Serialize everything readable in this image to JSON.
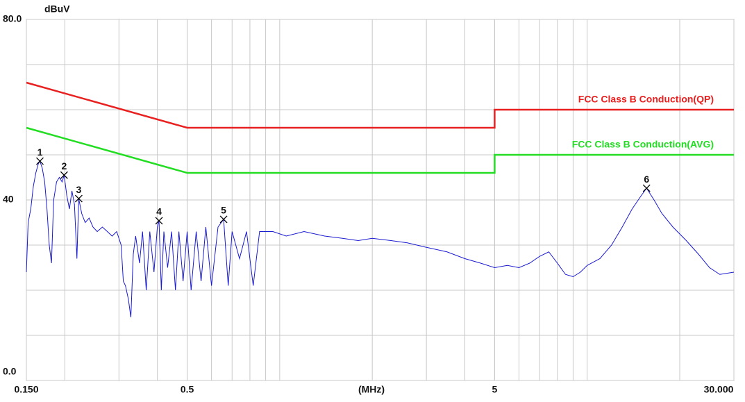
{
  "chart_data": {
    "type": "line",
    "y_label": "dBuV",
    "x_label": "(MHz)",
    "xscale": "log",
    "grid": true,
    "xlim": [
      0.15,
      30
    ],
    "ylim": [
      0,
      80
    ],
    "xticks": [
      {
        "value": 0.15,
        "label": "0.150"
      },
      0.5,
      5,
      {
        "value": 30,
        "label": "30.000"
      }
    ],
    "yticks": [
      {
        "value": 0,
        "label": "0.0"
      },
      40,
      {
        "value": 80,
        "label": "80.0"
      }
    ],
    "series": [
      {
        "name": "FCC Class B Conduction(QP)",
        "color": "#e82020",
        "x": [
          0.15,
          0.5,
          5,
          5,
          30
        ],
        "values": [
          66,
          56,
          56,
          60,
          60
        ]
      },
      {
        "name": "FCC Class B Conduction(AVG)",
        "color": "#22dd22",
        "x": [
          0.15,
          0.5,
          5,
          5,
          30
        ],
        "values": [
          56,
          46,
          46,
          50,
          50
        ]
      },
      {
        "color": "#1a1ad0",
        "x": [
          0.15,
          0.152,
          0.155,
          0.158,
          0.161,
          0.164,
          0.166,
          0.169,
          0.172,
          0.175,
          0.178,
          0.181,
          0.184,
          0.188,
          0.192,
          0.196,
          0.199,
          0.203,
          0.207,
          0.211,
          0.215,
          0.219,
          0.222,
          0.227,
          0.233,
          0.24,
          0.247,
          0.255,
          0.265,
          0.275,
          0.285,
          0.295,
          0.305,
          0.31,
          0.315,
          0.322,
          0.328,
          0.334,
          0.34,
          0.35,
          0.358,
          0.368,
          0.378,
          0.39,
          0.4,
          0.405,
          0.412,
          0.42,
          0.432,
          0.445,
          0.458,
          0.47,
          0.485,
          0.5,
          0.515,
          0.535,
          0.555,
          0.575,
          0.6,
          0.63,
          0.657,
          0.68,
          0.7,
          0.74,
          0.78,
          0.82,
          0.86,
          0.95,
          1.05,
          1.2,
          1.4,
          1.6,
          1.8,
          2,
          2.3,
          2.6,
          3,
          3.5,
          4,
          4.5,
          5,
          5.5,
          6,
          6.5,
          7,
          7.5,
          8,
          8.5,
          9,
          9.5,
          10,
          11,
          12,
          13,
          14,
          15,
          15.6,
          16.5,
          17.5,
          19,
          21,
          23,
          25,
          27,
          30
        ],
        "values": [
          24,
          35,
          38,
          43,
          46,
          48,
          48.6,
          47,
          44,
          38,
          30,
          26,
          40,
          44,
          45,
          44,
          45.5,
          41,
          38,
          42,
          39,
          27,
          40.3,
          37,
          35,
          36,
          34,
          33,
          34,
          33,
          32,
          33,
          30,
          22,
          21,
          18,
          14,
          28,
          32,
          26,
          33,
          20,
          33,
          24,
          34,
          35.4,
          20,
          33,
          25,
          33,
          20,
          33,
          22,
          33,
          20,
          33,
          22,
          34,
          21,
          34,
          35.7,
          21,
          33,
          27,
          33,
          21,
          33,
          33,
          32,
          33,
          32,
          31.5,
          31,
          31.5,
          31,
          30.5,
          29.5,
          28.5,
          27,
          26,
          25,
          25.5,
          25,
          26,
          27.5,
          28.5,
          26,
          23.5,
          23,
          24,
          25.5,
          27,
          30,
          34,
          38,
          41,
          42.6,
          40,
          37,
          34,
          31,
          28,
          25,
          23.5,
          24
        ]
      }
    ],
    "markers": {
      "labels": [
        "1",
        "2",
        "3",
        "4",
        "5",
        "6"
      ],
      "x": [
        0.166,
        0.199,
        0.222,
        0.405,
        0.657,
        15.6
      ],
      "values": [
        48.6,
        45.5,
        40.3,
        35.4,
        35.7,
        42.6
      ]
    }
  }
}
